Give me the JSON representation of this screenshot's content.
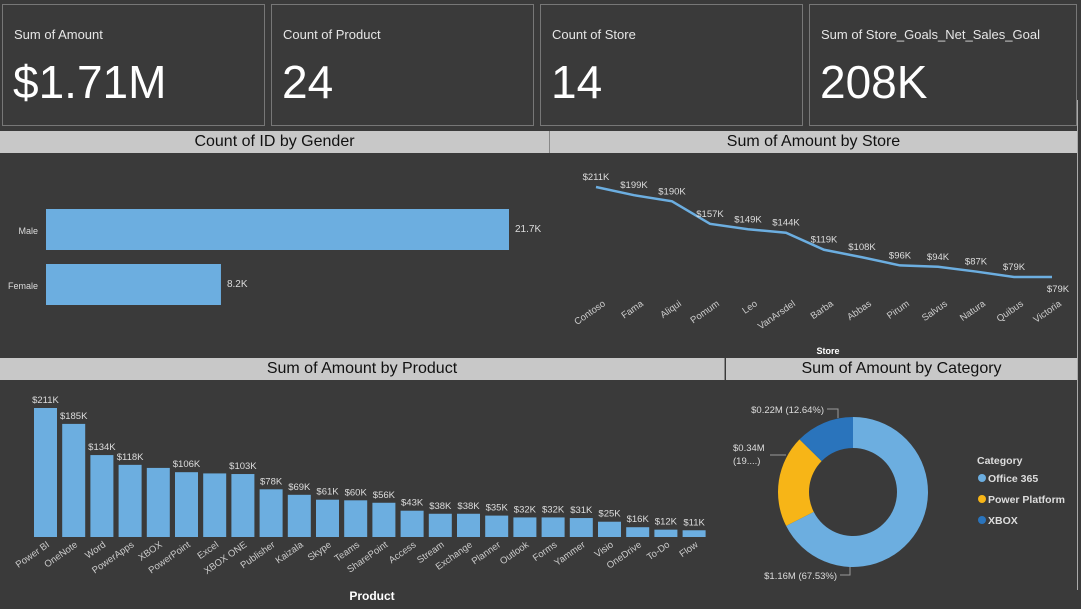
{
  "kpis": [
    {
      "label": "Sum of Amount",
      "value": "$1.71M"
    },
    {
      "label": "Count of Product",
      "value": "24"
    },
    {
      "label": "Count of Store",
      "value": "14"
    },
    {
      "label": "Sum of Store_Goals_Net_Sales_Goal",
      "value": "208K"
    }
  ],
  "headers": {
    "gender": "Count of ID by Gender",
    "store": "Sum of Amount by Store",
    "product": "Sum of Amount by Product",
    "category": "Sum of Amount by Category"
  },
  "colors": {
    "bar": "#6caee0",
    "office": "#6caee0",
    "power": "#f7b517",
    "xbox": "#2a74bc",
    "background": "#3a3a3a",
    "header": "#c8c8c8"
  },
  "chart_data": [
    {
      "type": "bar",
      "orientation": "horizontal",
      "title": "Count of ID by Gender",
      "categories": [
        "Male",
        "Female"
      ],
      "values": [
        21700,
        8200
      ],
      "data_labels": [
        "21.7K",
        "8.2K"
      ]
    },
    {
      "type": "line",
      "title": "Sum of Amount by Store",
      "xlabel": "Store",
      "categories": [
        "Contoso",
        "Fama",
        "Aliqui",
        "Pomum",
        "Leo",
        "VanArsdel",
        "Barba",
        "Abbas",
        "Pirum",
        "Salvus",
        "Natura",
        "Quibus",
        "Victoria"
      ],
      "values": [
        211,
        199,
        190,
        157,
        149,
        144,
        119,
        108,
        96,
        94,
        87,
        79,
        79
      ],
      "unit": "K",
      "data_labels": [
        "$211K",
        "$199K",
        "$190K",
        "$157K",
        "$149K",
        "$144K",
        "$119K",
        "$108K",
        "$96K",
        "$94K",
        "$87K",
        "$79K",
        "$79K"
      ]
    },
    {
      "type": "bar",
      "title": "Sum of Amount by Product",
      "xlabel": "Product",
      "categories": [
        "Power BI",
        "OneNote",
        "Word",
        "PowerApps",
        "XBOX",
        "PowerPoint",
        "Excel",
        "XBOX ONE",
        "Publisher",
        "Kaizala",
        "Skype",
        "Teams",
        "SharePoint",
        "Access",
        "Stream",
        "Exchange",
        "Planner",
        "Outlook",
        "Forms",
        "Yammer",
        "Visio",
        "OneDrive",
        "To-Do",
        "Flow"
      ],
      "values": [
        211,
        185,
        134,
        118,
        113,
        106,
        104,
        103,
        78,
        69,
        61,
        60,
        56,
        43,
        38,
        38,
        35,
        32,
        32,
        31,
        25,
        16,
        12,
        11
      ],
      "unit": "K",
      "data_labels": [
        "$211K",
        "$185K",
        "$134K",
        "$118K",
        "",
        "$106K",
        "",
        "$103K",
        "$78K",
        "$69K",
        "$61K",
        "$60K",
        "$56K",
        "$43K",
        "$38K",
        "$38K",
        "$35K",
        "$32K",
        "$32K",
        "$31K",
        "$25K",
        "$16K",
        "$12K",
        "$11K"
      ]
    },
    {
      "type": "pie",
      "subtype": "donut",
      "title": "Sum of Amount by Category",
      "legend_title": "Category",
      "legend_position": "right",
      "categories": [
        "Office 365",
        "Power Platform",
        "XBOX"
      ],
      "values": [
        1.16,
        0.34,
        0.22
      ],
      "percents": [
        67.53,
        19.83,
        12.64
      ],
      "data_labels": [
        "$1.16M (67.53%)",
        "$0.34M (19....)",
        "$0.22M (12.64%)"
      ]
    }
  ]
}
